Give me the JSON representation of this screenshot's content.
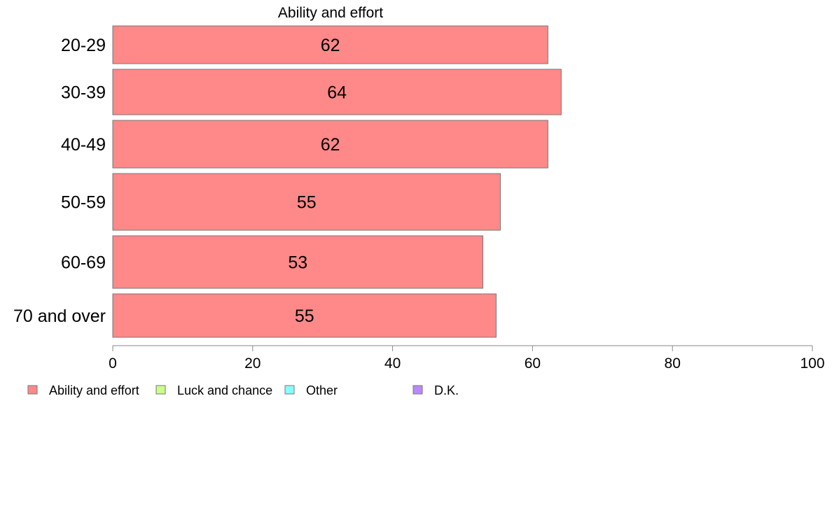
{
  "chart_data": {
    "type": "bar",
    "orientation": "horizontal",
    "title": "Ability and effort",
    "categories": [
      "20-29",
      "30-39",
      "40-49",
      "50-59",
      "60-69",
      "70 and over"
    ],
    "values": [
      62.2,
      64.1,
      62.2,
      55.4,
      52.9,
      54.8
    ],
    "value_labels": [
      "62",
      "64",
      "62",
      "55",
      "53",
      "55"
    ],
    "xlim": [
      0,
      100
    ],
    "xticks": [
      0,
      20,
      40,
      60,
      80,
      100
    ],
    "xlabel": "",
    "ylabel": "",
    "grid": false,
    "legend_position": "bottom-left",
    "legend": [
      {
        "label": "Ability and effort",
        "color": "#ff8888"
      },
      {
        "label": "Luck and chance",
        "color": "#ccff88"
      },
      {
        "label": "Other",
        "color": "#88ffff"
      },
      {
        "label": "D.K.",
        "color": "#bb88ff"
      }
    ],
    "bar_color": "#ff8888",
    "bar_border": "#777777"
  }
}
